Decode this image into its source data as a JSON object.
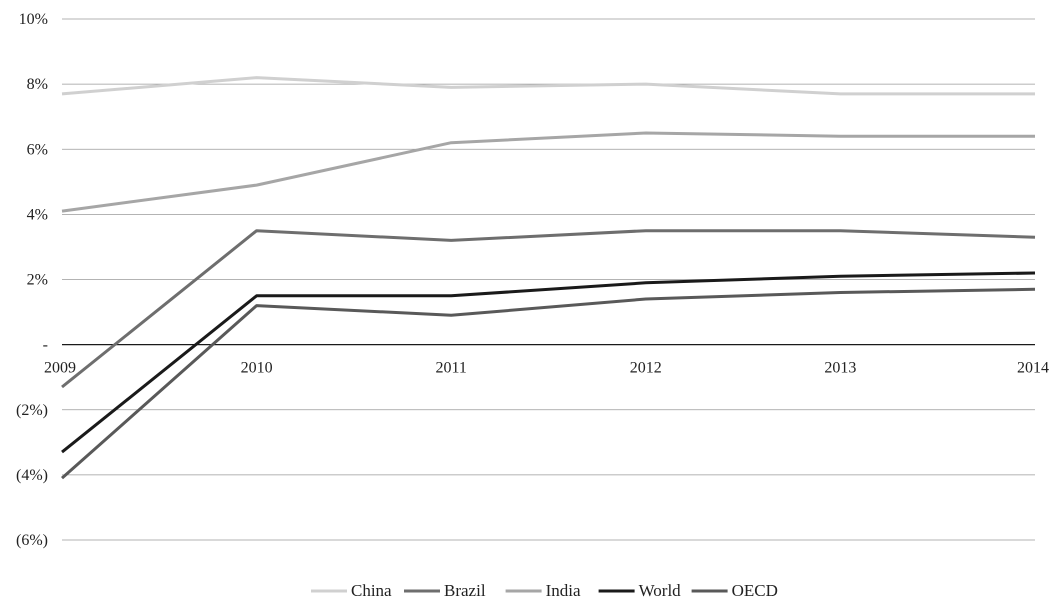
{
  "chart_data": {
    "type": "line",
    "title": "",
    "xlabel": "",
    "ylabel": "",
    "x": [
      "2009",
      "2010",
      "2011",
      "2012",
      "2013",
      "2014"
    ],
    "ylim": [
      -6,
      10
    ],
    "y_ticks": [
      {
        "value": 10,
        "label": "10%"
      },
      {
        "value": 8,
        "label": "8%"
      },
      {
        "value": 6,
        "label": "6%"
      },
      {
        "value": 4,
        "label": "4%"
      },
      {
        "value": 2,
        "label": "2%"
      },
      {
        "value": 0,
        "label": "-"
      },
      {
        "value": -2,
        "label": "(2%)"
      },
      {
        "value": -4,
        "label": "(4%)"
      },
      {
        "value": -6,
        "label": "(6%)"
      }
    ],
    "grid": true,
    "legend_position": "bottom-center",
    "series": [
      {
        "name": "China",
        "color": "#d0d0d0",
        "values": [
          7.7,
          8.2,
          7.9,
          8.0,
          7.7,
          7.7
        ]
      },
      {
        "name": "Brazil",
        "color": "#6e6e6e",
        "values": [
          -1.3,
          3.5,
          3.2,
          3.5,
          3.5,
          3.3
        ]
      },
      {
        "name": "India",
        "color": "#a6a6a6",
        "values": [
          4.1,
          4.9,
          6.2,
          6.5,
          6.4,
          6.4
        ]
      },
      {
        "name": "World",
        "color": "#1a1a1a",
        "values": [
          -3.3,
          1.5,
          1.5,
          1.9,
          2.1,
          2.2
        ]
      },
      {
        "name": "OECD",
        "color": "#595959",
        "values": [
          -4.1,
          1.2,
          0.9,
          1.4,
          1.6,
          1.7
        ]
      }
    ]
  }
}
